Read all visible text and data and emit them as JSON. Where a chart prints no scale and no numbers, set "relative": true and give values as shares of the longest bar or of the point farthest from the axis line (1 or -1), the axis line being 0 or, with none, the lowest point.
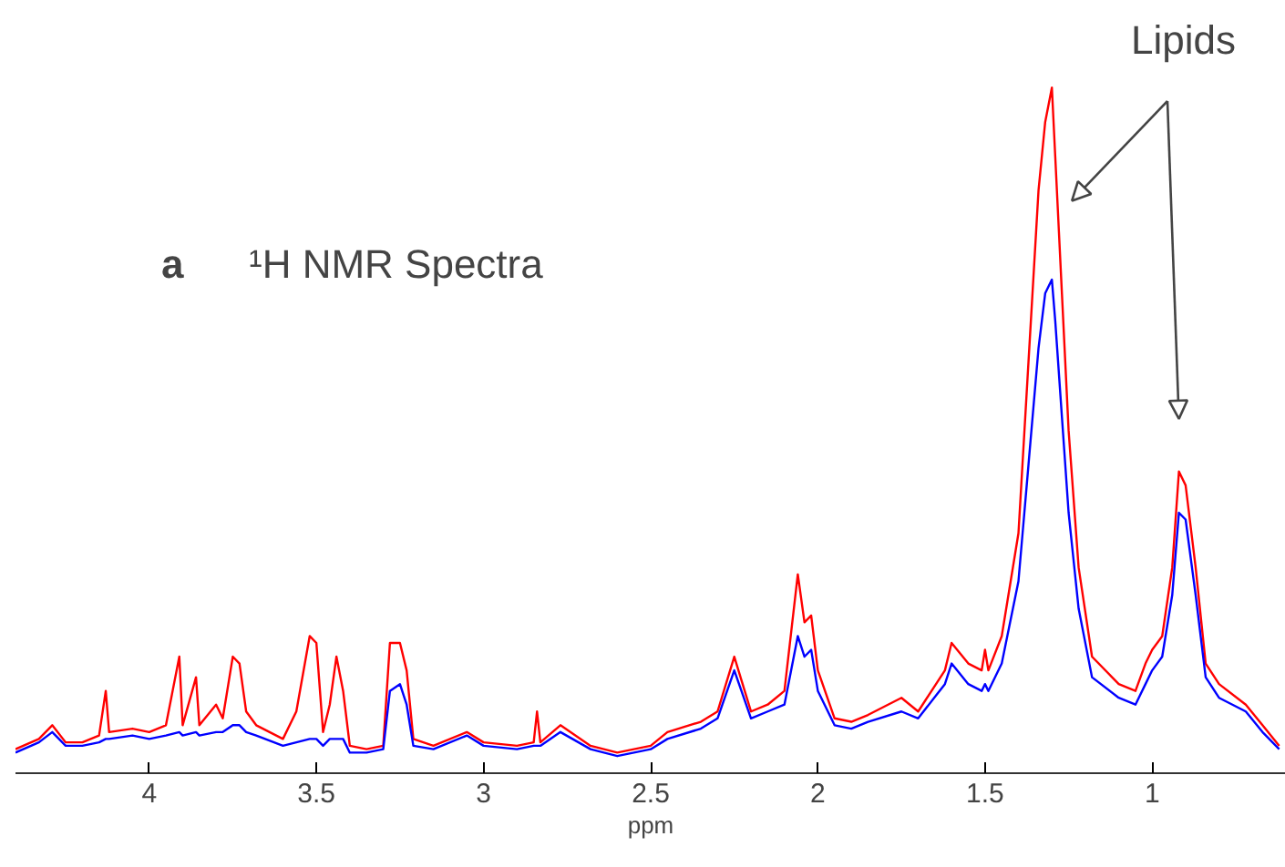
{
  "chart_data": {
    "type": "line",
    "relative": true,
    "xlabel": "ppm",
    "xlim": [
      4.4,
      0.6
    ],
    "xticks": [
      4,
      3.5,
      3,
      2.5,
      2,
      1.5,
      1
    ],
    "grid": false,
    "annotations": [
      "a",
      "¹H NMR Spectra",
      "Lipids"
    ],
    "x": [
      4.4,
      4.33,
      4.29,
      4.25,
      4.2,
      4.15,
      4.13,
      4.12,
      4.05,
      4.0,
      3.95,
      3.91,
      3.9,
      3.86,
      3.85,
      3.8,
      3.78,
      3.75,
      3.73,
      3.71,
      3.68,
      3.6,
      3.56,
      3.52,
      3.5,
      3.48,
      3.46,
      3.44,
      3.42,
      3.4,
      3.35,
      3.3,
      3.28,
      3.25,
      3.23,
      3.21,
      3.15,
      3.05,
      3.0,
      2.9,
      2.85,
      2.84,
      2.83,
      2.77,
      2.68,
      2.6,
      2.5,
      2.45,
      2.35,
      2.3,
      2.25,
      2.2,
      2.15,
      2.1,
      2.06,
      2.04,
      2.02,
      2.0,
      1.95,
      1.9,
      1.85,
      1.75,
      1.7,
      1.62,
      1.6,
      1.55,
      1.51,
      1.5,
      1.49,
      1.45,
      1.4,
      1.37,
      1.34,
      1.32,
      1.3,
      1.29,
      1.27,
      1.25,
      1.22,
      1.18,
      1.1,
      1.05,
      1.02,
      1.0,
      0.97,
      0.94,
      0.92,
      0.9,
      0.87,
      0.84,
      0.8,
      0.72,
      0.67,
      0.62
    ],
    "series": [
      {
        "color": "#ff0000",
        "values": [
          0.035,
          0.05,
          0.07,
          0.045,
          0.045,
          0.055,
          0.12,
          0.06,
          0.065,
          0.06,
          0.07,
          0.17,
          0.07,
          0.14,
          0.07,
          0.1,
          0.08,
          0.17,
          0.16,
          0.09,
          0.07,
          0.05,
          0.09,
          0.2,
          0.19,
          0.06,
          0.1,
          0.17,
          0.12,
          0.04,
          0.035,
          0.04,
          0.19,
          0.19,
          0.15,
          0.05,
          0.04,
          0.06,
          0.045,
          0.04,
          0.045,
          0.09,
          0.045,
          0.07,
          0.04,
          0.03,
          0.04,
          0.06,
          0.075,
          0.09,
          0.17,
          0.09,
          0.1,
          0.12,
          0.29,
          0.22,
          0.23,
          0.15,
          0.08,
          0.075,
          0.085,
          0.11,
          0.09,
          0.15,
          0.19,
          0.16,
          0.15,
          0.18,
          0.15,
          0.2,
          0.35,
          0.6,
          0.85,
          0.95,
          1.0,
          0.9,
          0.7,
          0.5,
          0.3,
          0.17,
          0.13,
          0.12,
          0.16,
          0.18,
          0.2,
          0.3,
          0.44,
          0.42,
          0.3,
          0.16,
          0.13,
          0.1,
          0.07,
          0.04
        ]
      },
      {
        "color": "#0000ff",
        "values": [
          0.03,
          0.045,
          0.06,
          0.04,
          0.04,
          0.045,
          0.05,
          0.05,
          0.055,
          0.05,
          0.055,
          0.06,
          0.055,
          0.06,
          0.055,
          0.06,
          0.06,
          0.07,
          0.07,
          0.06,
          0.055,
          0.04,
          0.045,
          0.05,
          0.05,
          0.04,
          0.05,
          0.05,
          0.05,
          0.03,
          0.03,
          0.035,
          0.12,
          0.13,
          0.1,
          0.04,
          0.035,
          0.055,
          0.04,
          0.035,
          0.04,
          0.04,
          0.04,
          0.06,
          0.035,
          0.025,
          0.035,
          0.05,
          0.065,
          0.08,
          0.15,
          0.08,
          0.09,
          0.1,
          0.2,
          0.17,
          0.18,
          0.12,
          0.07,
          0.065,
          0.075,
          0.09,
          0.08,
          0.13,
          0.16,
          0.13,
          0.12,
          0.13,
          0.12,
          0.16,
          0.28,
          0.45,
          0.62,
          0.7,
          0.72,
          0.66,
          0.52,
          0.38,
          0.24,
          0.14,
          0.11,
          0.1,
          0.13,
          0.15,
          0.17,
          0.26,
          0.38,
          0.37,
          0.26,
          0.14,
          0.11,
          0.09,
          0.06,
          0.035
        ]
      }
    ]
  }
}
